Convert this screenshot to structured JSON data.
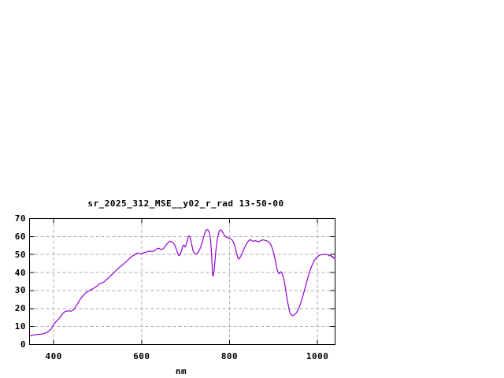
{
  "colors": {
    "background": "#ffffff",
    "line": "#9400d3",
    "grid": "#aaaaaa",
    "axis": "#000000",
    "text": "#000000"
  },
  "chart_data": {
    "type": "line",
    "title": "sr_2025_312_MSE__y02_r_rad 13-50-00",
    "xlabel": "nm",
    "ylabel": "",
    "xlim": [
      345,
      1040
    ],
    "ylim": [
      0,
      70
    ],
    "x_ticks": [
      400,
      600,
      800,
      1000
    ],
    "y_ticks": [
      0,
      10,
      20,
      30,
      40,
      50,
      60,
      70
    ],
    "grid": "dashed",
    "legend": "none",
    "series": [
      {
        "name": "radiance",
        "color": "#9400d3",
        "x": [
          345,
          350,
          354,
          358,
          363,
          368,
          373,
          378,
          383,
          388,
          391,
          394,
          397,
          400,
          403,
          406,
          409,
          412,
          415,
          418,
          421,
          424,
          427,
          430,
          433,
          436,
          439,
          442,
          445,
          448,
          451,
          454,
          457,
          460,
          463,
          466,
          469,
          472,
          475,
          478,
          481,
          484,
          487,
          490,
          493,
          496,
          499,
          502,
          505,
          508,
          511,
          514,
          517,
          520,
          523,
          526,
          529,
          532,
          535,
          538,
          541,
          544,
          547,
          550,
          553,
          556,
          559,
          562,
          565,
          568,
          571,
          574,
          577,
          580,
          583,
          586,
          589,
          592,
          595,
          598,
          601,
          604,
          607,
          610,
          613,
          616,
          619,
          622,
          625,
          628,
          631,
          634,
          637,
          640,
          643,
          646,
          649,
          652,
          655,
          658,
          661,
          664,
          667,
          670,
          673,
          676,
          679,
          682,
          685,
          688,
          691,
          694,
          696,
          698,
          700,
          702,
          704,
          706,
          708,
          710,
          712,
          714,
          716,
          718,
          721,
          724,
          727,
          730,
          733,
          736,
          739,
          742,
          745,
          748,
          751,
          753,
          755,
          757,
          759,
          761,
          762,
          763,
          765,
          767,
          769,
          771,
          773,
          775,
          777,
          779,
          781,
          783,
          785,
          787,
          789,
          792,
          795,
          798,
          801,
          804,
          807,
          810,
          813,
          816,
          819,
          821,
          823,
          826,
          829,
          832,
          835,
          838,
          841,
          844,
          847,
          850,
          853,
          856,
          859,
          862,
          865,
          868,
          871,
          874,
          877,
          880,
          883,
          886,
          889,
          892,
          895,
          898,
          901,
          904,
          907,
          910,
          913,
          915,
          917,
          919,
          922,
          925,
          928,
          931,
          934,
          937,
          940,
          943,
          946,
          949,
          952,
          955,
          958,
          961,
          964,
          967,
          970,
          973,
          976,
          979,
          982,
          985,
          988,
          991,
          994,
          997,
          1000,
          1003,
          1006,
          1009,
          1012,
          1015,
          1018,
          1021,
          1024,
          1027,
          1030,
          1033,
          1035,
          1037,
          1039,
          1040
        ],
        "y": [
          4.8,
          5.0,
          5.2,
          5.5,
          5.6,
          5.7,
          5.8,
          6.1,
          6.6,
          7.3,
          7.9,
          8.6,
          9.9,
          11.2,
          12.1,
          12.9,
          13.5,
          14.3,
          15.3,
          16.4,
          17.3,
          18.0,
          18.4,
          18.6,
          18.7,
          18.6,
          18.5,
          18.8,
          19.4,
          20.3,
          21.4,
          22.6,
          23.8,
          25.0,
          26.1,
          27.0,
          27.8,
          28.5,
          29.0,
          29.5,
          29.9,
          30.3,
          30.7,
          31.1,
          31.6,
          32.1,
          32.7,
          33.3,
          33.8,
          34.1,
          34.3,
          34.7,
          35.3,
          36.0,
          36.7,
          37.4,
          38.1,
          38.8,
          39.5,
          40.2,
          40.9,
          41.6,
          42.3,
          43.0,
          43.6,
          44.2,
          44.8,
          45.4,
          46.1,
          46.8,
          47.5,
          48.2,
          48.8,
          49.3,
          49.8,
          50.2,
          50.6,
          50.9,
          50.4,
          50.3,
          50.6,
          50.9,
          51.1,
          51.3,
          51.6,
          51.8,
          51.9,
          51.8,
          51.7,
          52.0,
          52.4,
          53.0,
          53.4,
          53.4,
          52.9,
          52.8,
          53.2,
          54.0,
          55.0,
          56.0,
          56.8,
          57.3,
          57.2,
          56.9,
          56.2,
          54.8,
          52.8,
          50.8,
          49.3,
          50.2,
          52.5,
          54.8,
          55.3,
          54.2,
          54.8,
          56.2,
          58.0,
          59.8,
          60.4,
          59.6,
          57.8,
          55.5,
          53.2,
          51.5,
          50.5,
          50.3,
          50.8,
          51.8,
          53.3,
          55.3,
          57.8,
          60.5,
          62.8,
          63.9,
          63.7,
          62.8,
          61.0,
          57.5,
          50.5,
          41.0,
          38.0,
          38.5,
          41.5,
          47.0,
          52.5,
          56.5,
          59.5,
          61.8,
          63.2,
          63.7,
          63.5,
          62.9,
          62.0,
          61.2,
          60.5,
          59.8,
          59.4,
          59.1,
          58.9,
          58.5,
          57.7,
          56.2,
          53.8,
          50.8,
          48.2,
          47.5,
          48.0,
          49.4,
          51.0,
          52.7,
          54.3,
          55.7,
          56.9,
          57.8,
          58.3,
          57.9,
          57.5,
          57.4,
          57.7,
          57.4,
          57.1,
          57.3,
          57.7,
          58.0,
          58.1,
          57.9,
          57.7,
          57.5,
          56.9,
          56.2,
          54.8,
          52.8,
          50.2,
          46.8,
          42.8,
          40.2,
          39.3,
          40.0,
          40.5,
          39.8,
          37.8,
          34.4,
          29.8,
          25.2,
          21.2,
          18.0,
          16.4,
          16.0,
          16.3,
          16.9,
          17.7,
          18.9,
          20.4,
          22.4,
          24.7,
          27.1,
          29.8,
          32.6,
          35.3,
          37.9,
          40.3,
          42.4,
          44.3,
          45.9,
          47.1,
          48.1,
          48.8,
          49.3,
          49.7,
          49.9,
          50.0,
          50.1,
          50.2,
          50.0,
          49.9,
          49.2,
          49.6,
          48.6,
          48.9,
          47.9,
          48.2,
          47.3
        ]
      }
    ]
  }
}
